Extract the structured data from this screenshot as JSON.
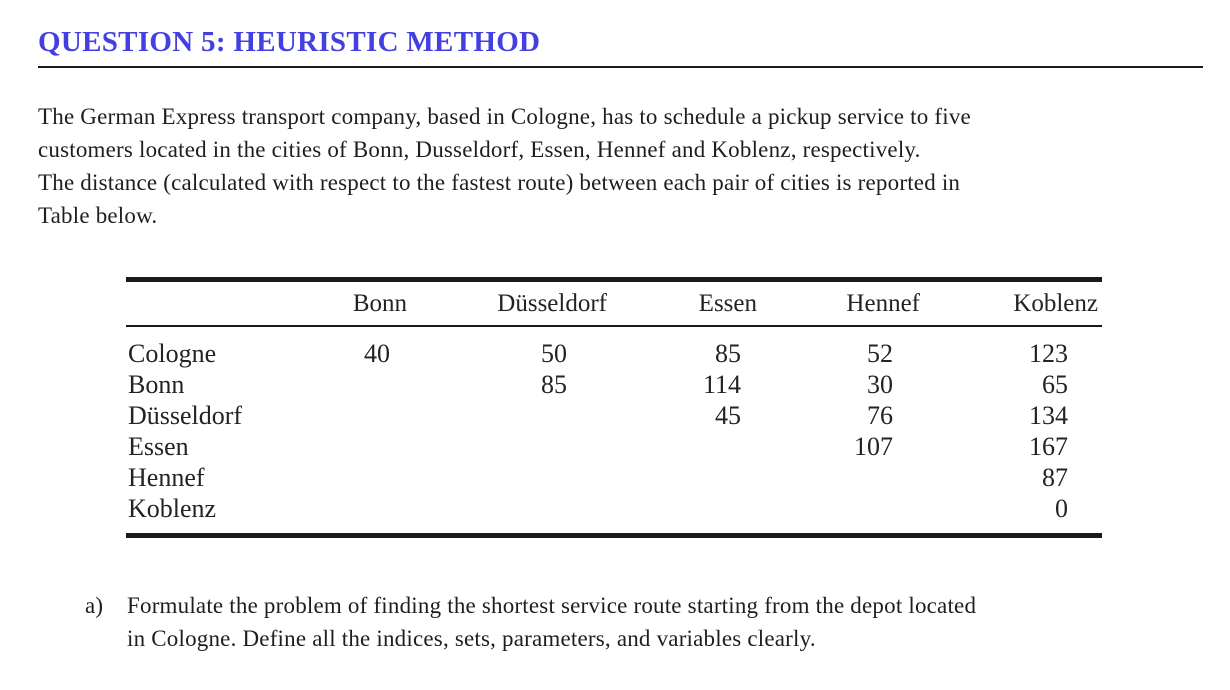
{
  "colors": {
    "title_blue": "#433fe0",
    "body_text": "#1e1e1e",
    "rule": "#1c191a"
  },
  "header": {
    "title": "QUESTION 5: HEURISTIC METHOD"
  },
  "intro": {
    "lines": [
      "The German Express transport company, based in Cologne, has to schedule a pickup service to five",
      "customers located in the cities of Bonn, Dusseldorf, Essen, Hennef and Koblenz, respectively.",
      "The distance (calculated with respect to the fastest route) between each pair of cities is reported in",
      "Table below."
    ]
  },
  "distance_table": {
    "column_headers": [
      "Bonn",
      "Düsseldorf",
      "Essen",
      "Hennef",
      "Koblenz"
    ],
    "rows": [
      {
        "label": "Cologne",
        "values": [
          "40",
          "50",
          "85",
          "52",
          "123"
        ]
      },
      {
        "label": "Bonn",
        "values": [
          "",
          "85",
          "114",
          "30",
          "65"
        ]
      },
      {
        "label": "Düsseldorf",
        "values": [
          "",
          "",
          "45",
          "76",
          "134"
        ]
      },
      {
        "label": "Essen",
        "values": [
          "",
          "",
          "",
          "107",
          "167"
        ]
      },
      {
        "label": "Hennef",
        "values": [
          "",
          "",
          "",
          "",
          "87"
        ]
      },
      {
        "label": "Koblenz",
        "values": [
          "",
          "",
          "",
          "",
          "0"
        ]
      }
    ]
  },
  "question_a": {
    "marker": "a)",
    "lines": [
      "Formulate the problem of finding the shortest service route starting from the depot located",
      "in Cologne. Define all the indices, sets, parameters, and variables clearly."
    ]
  }
}
